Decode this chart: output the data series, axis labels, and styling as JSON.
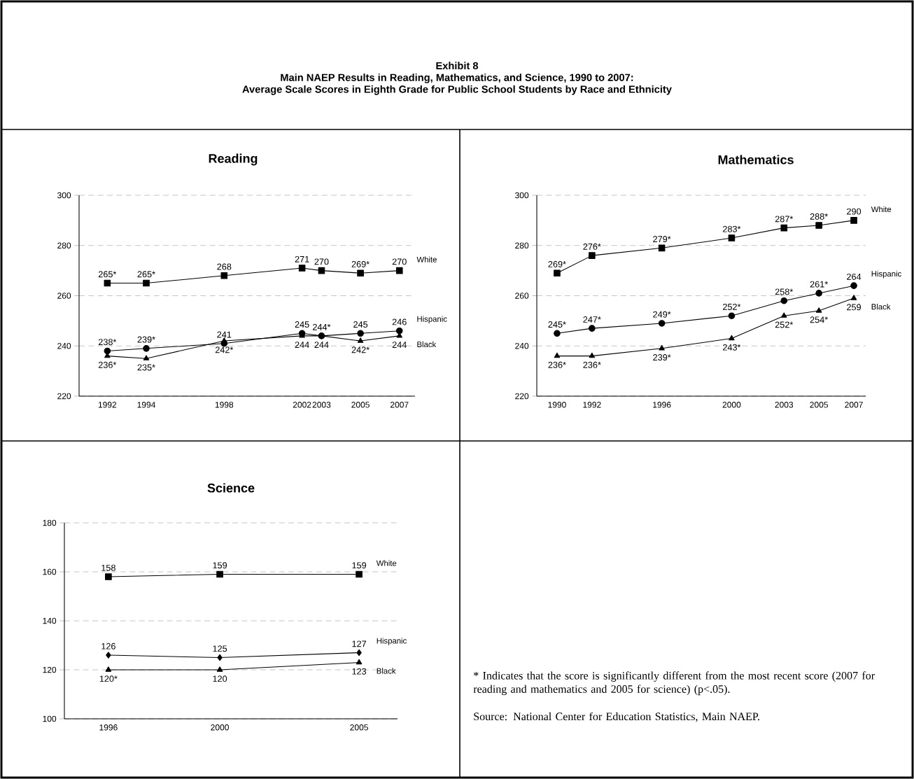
{
  "chart_data": [
    {
      "type": "other",
      "title": "Exhibit 8",
      "subtitle": "Main NAEP Results in Reading, Mathematics, and Science, 1990 to 2007:",
      "annotations": [
        "Average Scale Scores in Eighth Grade for Public School Students by Race and Ethnicity"
      ]
    },
    {
      "type": "line",
      "title": "Reading",
      "x": [
        1992,
        1994,
        1998,
        2002,
        2003,
        2005,
        2007
      ],
      "xlim": [
        1990.55,
        2007.8
      ],
      "xticks": [
        1992,
        1994,
        1998,
        2002,
        2003,
        2005,
        2007
      ],
      "ylim": [
        220,
        300
      ],
      "yticks": [
        220,
        240,
        260,
        280,
        300
      ],
      "grid": "y",
      "line_style": "solid",
      "series": [
        {
          "name": "White",
          "color": "#000000",
          "marker": "square",
          "values": [
            265,
            265,
            268,
            271,
            270,
            269,
            270
          ],
          "value_labels": [
            "265*",
            "265*",
            "268",
            "271",
            "270",
            "269*",
            "270"
          ]
        },
        {
          "name": "Hispanic",
          "color": "#000000",
          "marker": "circle",
          "values": [
            238,
            239,
            241,
            245,
            244,
            245,
            246
          ],
          "value_labels": [
            "238*",
            "239*",
            "241",
            "245",
            "244*",
            "245",
            "246"
          ]
        },
        {
          "name": "Black",
          "color": "#000000",
          "marker": "triangle",
          "values": [
            236,
            235,
            242,
            244,
            244,
            242,
            244
          ],
          "value_labels": [
            "236*",
            "235*",
            "242*",
            "244",
            "244",
            "242*",
            "244"
          ]
        }
      ]
    },
    {
      "type": "line",
      "title": "Mathematics",
      "x": [
        1990,
        1992,
        1996,
        2000,
        2003,
        2005,
        2007
      ],
      "xlim": [
        1988.84,
        2007.68
      ],
      "xticks": [
        1990,
        1992,
        1996,
        2000,
        2003,
        2005,
        2007
      ],
      "ylim": [
        220,
        300
      ],
      "yticks": [
        220,
        240,
        260,
        280,
        300
      ],
      "grid": "y",
      "line_style": "solid",
      "series": [
        {
          "name": "White",
          "color": "#000000",
          "marker": "square",
          "values": [
            269,
            276,
            279,
            283,
            287,
            288,
            290
          ],
          "value_labels": [
            "269*",
            "276*",
            "279*",
            "283*",
            "287*",
            "288*",
            "290"
          ]
        },
        {
          "name": "Hispanic",
          "color": "#000000",
          "marker": "circle",
          "values": [
            245,
            247,
            249,
            252,
            258,
            261,
            264
          ],
          "value_labels": [
            "245*",
            "247*",
            "249*",
            "252*",
            "258*",
            "261*",
            "264"
          ]
        },
        {
          "name": "Black",
          "color": "#000000",
          "marker": "triangle",
          "values": [
            236,
            236,
            239,
            243,
            252,
            254,
            259
          ],
          "value_labels": [
            "236*",
            "236*",
            "239*",
            "243*",
            "252*",
            "254*",
            "259"
          ]
        }
      ]
    },
    {
      "type": "line",
      "title": "Science",
      "x": [
        1996,
        2000,
        2005
      ],
      "xlim": [
        1994.42,
        2006.38
      ],
      "xticks": [
        1996,
        2000,
        2005
      ],
      "ylim": [
        100,
        180
      ],
      "yticks": [
        100,
        120,
        140,
        160,
        180
      ],
      "grid": "y",
      "line_style": "solid",
      "series": [
        {
          "name": "White",
          "color": "#000000",
          "marker": "square",
          "values": [
            158,
            159,
            159
          ],
          "value_labels": [
            "158",
            "159",
            "159"
          ]
        },
        {
          "name": "Hispanic",
          "color": "#000000",
          "marker": "diamond",
          "values": [
            126,
            125,
            127
          ],
          "value_labels": [
            "126",
            "125",
            "127"
          ]
        },
        {
          "name": "Black",
          "color": "#000000",
          "marker": "triangle",
          "values": [
            120,
            120,
            123
          ],
          "value_labels": [
            "120*",
            "120",
            "123"
          ]
        }
      ]
    },
    {
      "type": "other",
      "annotations": [
        "* Indicates that the score is significantly different from the most recent score (2007 for reading and mathematics and 2005 for science) (p<.05).",
        "Source: National Center for Education Statistics, Main NAEP."
      ]
    }
  ]
}
